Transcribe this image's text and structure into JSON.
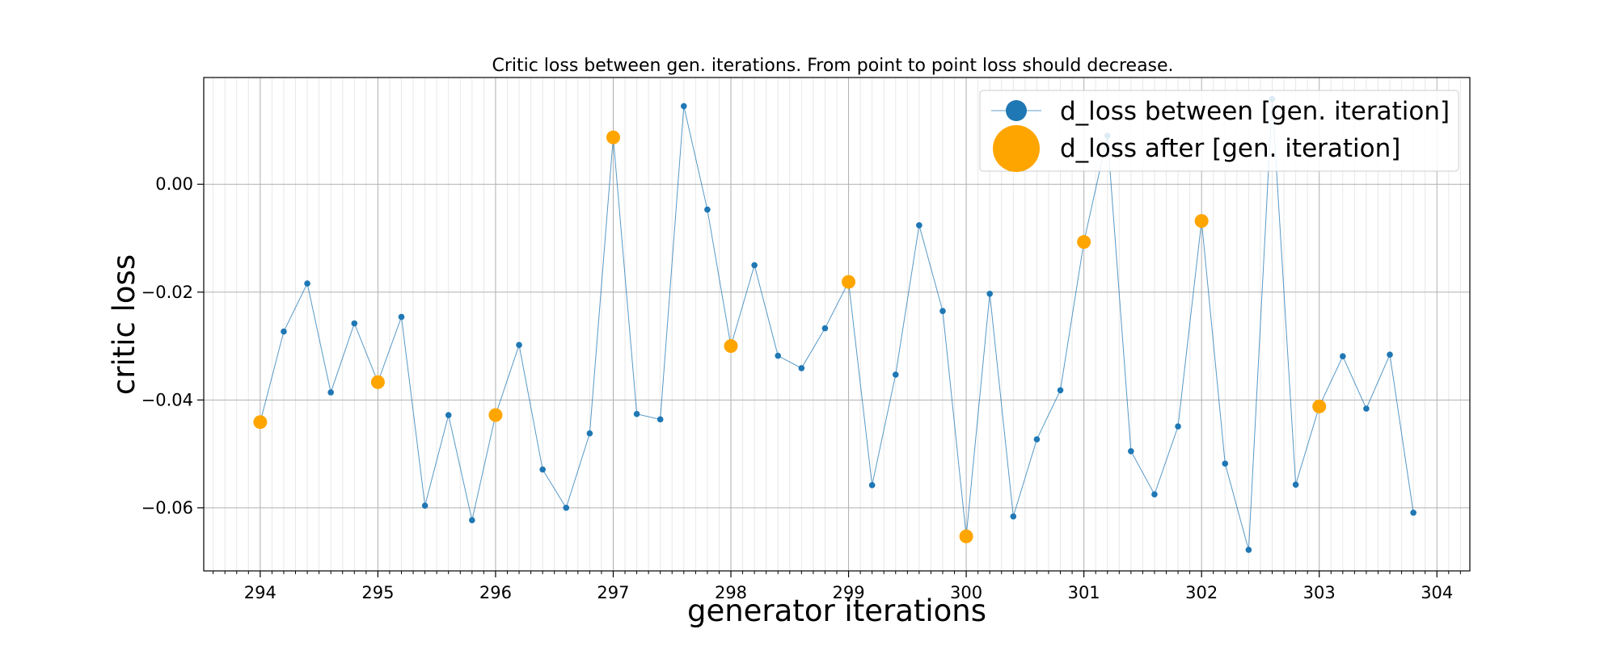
{
  "chart_data": {
    "type": "line",
    "title": "Critic loss between gen. iterations. From point to point loss should decrease.",
    "xlabel": "generator iterations",
    "ylabel": "critic loss",
    "xlim": [
      293.52,
      304.28
    ],
    "ylim": [
      -0.0717,
      0.0198
    ],
    "xticks": [
      294,
      295,
      296,
      297,
      298,
      299,
      300,
      301,
      302,
      303,
      304
    ],
    "xtick_labels": [
      "294",
      "295",
      "296",
      "297",
      "298",
      "299",
      "300",
      "301",
      "302",
      "303",
      "304"
    ],
    "yticks": [
      -0.06,
      -0.04,
      -0.02,
      0.0
    ],
    "ytick_labels": [
      "−0.06",
      "−0.04",
      "−0.02",
      "0.00"
    ],
    "grid": true,
    "minor_x_grid_step": 0.1,
    "legend_position": "top-right",
    "series": [
      {
        "name": "d_loss between [gen. iteration]",
        "color": "#1f77b4",
        "x": [
          294.0,
          294.2,
          294.4,
          294.6,
          294.8,
          295.0,
          295.2,
          295.4,
          295.6,
          295.8,
          296.0,
          296.2,
          296.4,
          296.6,
          296.8,
          297.0,
          297.2,
          297.4,
          297.6,
          297.8,
          298.0,
          298.2,
          298.4,
          298.6,
          298.8,
          299.0,
          299.2,
          299.4,
          299.6,
          299.8,
          300.0,
          300.2,
          300.4,
          300.6,
          300.8,
          301.0,
          301.2,
          301.4,
          301.6,
          301.8,
          302.0,
          302.2,
          302.4,
          302.6,
          302.8,
          303.0,
          303.2,
          303.4,
          303.6,
          303.8
        ],
        "y": [
          -0.0441,
          -0.0273,
          -0.0184,
          -0.0386,
          -0.0258,
          -0.0367,
          -0.0246,
          -0.0596,
          -0.0428,
          -0.0623,
          -0.0428,
          -0.0298,
          -0.0529,
          -0.06,
          -0.0462,
          0.0087,
          -0.0426,
          -0.0436,
          0.0145,
          -0.0047,
          -0.03,
          -0.015,
          -0.0318,
          -0.0341,
          -0.0267,
          -0.0181,
          -0.0558,
          -0.0353,
          -0.0076,
          -0.0235,
          -0.0653,
          -0.0203,
          -0.0616,
          -0.0473,
          -0.0382,
          -0.0107,
          0.009,
          -0.0495,
          -0.0575,
          -0.0449,
          -0.0068,
          -0.0518,
          -0.0678,
          0.0158,
          -0.0557,
          -0.0412,
          -0.0319,
          -0.0416,
          -0.0316,
          -0.0609
        ]
      },
      {
        "name": "d_loss after [gen. iteration]",
        "color": "#ffa500",
        "x": [
          294,
          295,
          296,
          297,
          298,
          299,
          300,
          301,
          302,
          303
        ],
        "y": [
          -0.0441,
          -0.0367,
          -0.0428,
          0.0087,
          -0.03,
          -0.0181,
          -0.0653,
          -0.0107,
          -0.0068,
          -0.0412
        ]
      }
    ]
  }
}
